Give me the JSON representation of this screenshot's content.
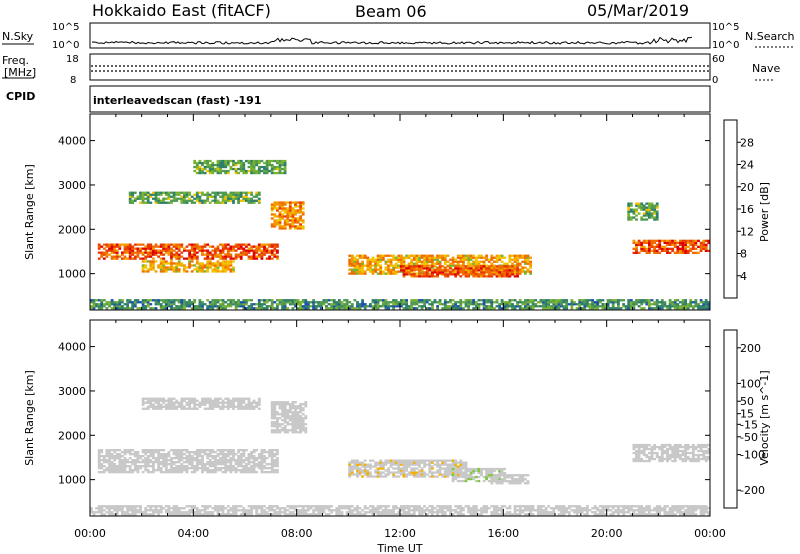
{
  "header": {
    "station": "Hokkaido East (fitACF)",
    "beam": "Beam 06",
    "date": "05/Mar/2019"
  },
  "mini_panels": {
    "nsky_label": "N.Sky",
    "nsky_tick_top": "10^5",
    "nsky_tick_bottom": "10^0",
    "nsearch_label": "N.Search",
    "freq_label_1": "Freq.",
    "freq_label_2": "[MHz]",
    "freq_tick_top": "18",
    "freq_tick_bottom": "8",
    "nave_tick_top": "60",
    "nave_tick_bottom": "0",
    "nave_label": "Nave",
    "cpid_label": "CPID",
    "cpid_text": "interleavedscan (fast) -191"
  },
  "colors": {
    "power_scale": [
      "#1414ff",
      "#1a4fb4",
      "#2e7f6a",
      "#4f9a4f",
      "#79b233",
      "#f2c400",
      "#f59b00",
      "#f06b00",
      "#e83a00",
      "#e00000"
    ],
    "velocity_scale": [
      "#1a1aa8",
      "#2a4faa",
      "#2a7f5a",
      "#7fc83a",
      "#c8c8c8",
      "#c8c8c8",
      "#f5b000",
      "#f08000",
      "#ee4a00",
      "#e00000"
    ]
  },
  "chart_data": [
    {
      "type": "heatmap",
      "title": "",
      "xlabel": "Time UT",
      "ylabel": "Slant Range [km]",
      "x_ticks": [
        "00:00",
        "04:00",
        "08:00",
        "12:00",
        "16:00",
        "20:00",
        "00:00"
      ],
      "xlim_hours": [
        0,
        24
      ],
      "ylim": [
        180,
        4600
      ],
      "y_ticks": [
        1000,
        2000,
        3000,
        4000
      ],
      "colorbar_label": "Power [dB]",
      "colorbar_range": [
        0,
        32
      ],
      "colorbar_ticks": [
        4,
        8,
        12,
        16,
        20,
        24,
        28
      ],
      "regions": [
        {
          "t0": 0.3,
          "t1": 7.2,
          "r_center": 1500,
          "r_half": 180,
          "value": 26
        },
        {
          "t0": 2.0,
          "t1": 5.5,
          "r_center": 1150,
          "r_half": 120,
          "value": 20
        },
        {
          "t0": 7.0,
          "t1": 8.2,
          "r_center": 2300,
          "r_half": 300,
          "value": 22
        },
        {
          "t0": 1.5,
          "t1": 6.5,
          "r_center": 2700,
          "r_half": 120,
          "value": 12
        },
        {
          "t0": 4.0,
          "t1": 7.5,
          "r_center": 3400,
          "r_half": 150,
          "value": 12
        },
        {
          "t0": 10.0,
          "t1": 17.0,
          "r_center": 1200,
          "r_half": 220,
          "value": 20
        },
        {
          "t0": 12.0,
          "t1": 16.5,
          "r_center": 1050,
          "r_half": 130,
          "value": 26
        },
        {
          "t0": 21.0,
          "t1": 24.0,
          "r_center": 1600,
          "r_half": 150,
          "value": 26
        },
        {
          "t0": 20.8,
          "t1": 22.0,
          "r_center": 2400,
          "r_half": 200,
          "value": 12
        },
        {
          "t0": 0.0,
          "t1": 24.0,
          "r_center": 300,
          "r_half": 100,
          "value": 10
        }
      ]
    },
    {
      "type": "heatmap",
      "title": "",
      "xlabel": "Time UT",
      "ylabel": "Slant Range [km]",
      "x_ticks": [
        "00:00",
        "04:00",
        "08:00",
        "12:00",
        "16:00",
        "20:00",
        "00:00"
      ],
      "xlim_hours": [
        0,
        24
      ],
      "ylim": [
        180,
        4600
      ],
      "y_ticks": [
        1000,
        2000,
        3000,
        4000
      ],
      "colorbar_label": "Velocity [m s^-1]",
      "colorbar_range": [
        -250,
        250
      ],
      "colorbar_ticks": [
        -200,
        -100,
        -50,
        -15,
        15,
        50,
        100,
        200
      ],
      "regions": [
        {
          "t0": 0.3,
          "t1": 7.2,
          "r_center": 1400,
          "r_half": 250,
          "value": 0
        },
        {
          "t0": 10.0,
          "t1": 14.5,
          "r_center": 1250,
          "r_half": 200,
          "value": 40
        },
        {
          "t0": 14.0,
          "t1": 16.0,
          "r_center": 1100,
          "r_half": 150,
          "value": -40
        },
        {
          "t0": 15.5,
          "t1": 17.0,
          "r_center": 1000,
          "r_half": 100,
          "value": 0
        },
        {
          "t0": 21.0,
          "t1": 24.0,
          "r_center": 1600,
          "r_half": 200,
          "value": 0
        },
        {
          "t0": 7.0,
          "t1": 8.3,
          "r_center": 2400,
          "r_half": 350,
          "value": 0
        },
        {
          "t0": 2.0,
          "t1": 6.5,
          "r_center": 2700,
          "r_half": 120,
          "value": 0
        },
        {
          "t0": 0.0,
          "t1": 24.0,
          "r_center": 300,
          "r_half": 100,
          "value": -30
        }
      ]
    }
  ]
}
